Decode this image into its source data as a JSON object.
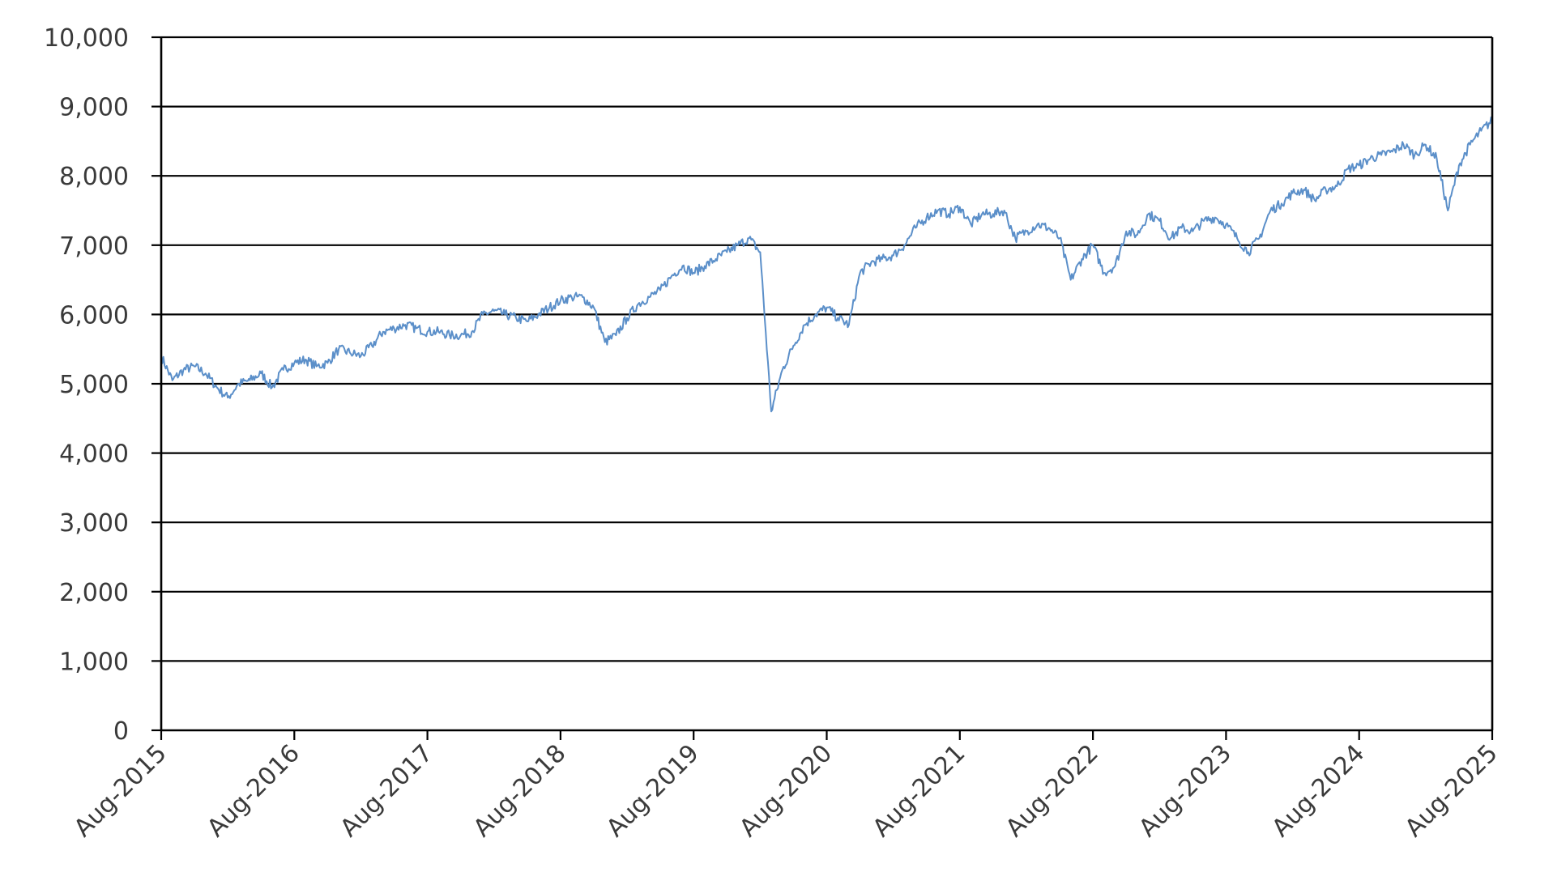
{
  "chart_data": {
    "type": "line",
    "title": "",
    "xlabel": "",
    "ylabel": "",
    "ylim": [
      0,
      10000
    ],
    "yticks": [
      0,
      1000,
      2000,
      3000,
      4000,
      5000,
      6000,
      7000,
      8000,
      9000,
      10000
    ],
    "ytick_labels": [
      "0",
      "1,000",
      "2,000",
      "3,000",
      "4,000",
      "5,000",
      "6,000",
      "7,000",
      "8,000",
      "9,000",
      "10,000"
    ],
    "xlim": [
      "2015-08",
      "2025-08"
    ],
    "xticks": [
      "2015-08",
      "2016-08",
      "2017-08",
      "2018-08",
      "2019-08",
      "2020-08",
      "2021-08",
      "2022-08",
      "2023-08",
      "2024-08",
      "2025-08"
    ],
    "xtick_labels": [
      "Aug-2015",
      "Aug-2016",
      "Aug-2017",
      "Aug-2018",
      "Aug-2019",
      "Aug-2020",
      "Aug-2021",
      "Aug-2022",
      "Aug-2023",
      "Aug-2024",
      "Aug-2025"
    ],
    "grid": true,
    "legend": "none",
    "series": [
      {
        "color": "#5b8fc9",
        "points": [
          [
            "2015-08",
            5400
          ],
          [
            "2015-09",
            5050
          ],
          [
            "2015-10",
            5200
          ],
          [
            "2015-11",
            5250
          ],
          [
            "2015-12",
            5150
          ],
          [
            "2016-01",
            4950
          ],
          [
            "2016-02",
            4800
          ],
          [
            "2016-03",
            5000
          ],
          [
            "2016-04",
            5050
          ],
          [
            "2016-05",
            5150
          ],
          [
            "2016-06",
            4950
          ],
          [
            "2016-07",
            5200
          ],
          [
            "2016-08",
            5300
          ],
          [
            "2016-09",
            5350
          ],
          [
            "2016-10",
            5250
          ],
          [
            "2016-11",
            5300
          ],
          [
            "2016-12",
            5500
          ],
          [
            "2017-01",
            5450
          ],
          [
            "2017-02",
            5400
          ],
          [
            "2017-03",
            5550
          ],
          [
            "2017-04",
            5750
          ],
          [
            "2017-05",
            5800
          ],
          [
            "2017-06",
            5850
          ],
          [
            "2017-07",
            5800
          ],
          [
            "2017-08",
            5750
          ],
          [
            "2017-09",
            5750
          ],
          [
            "2017-10",
            5700
          ],
          [
            "2017-11",
            5700
          ],
          [
            "2017-12",
            5750
          ],
          [
            "2018-01",
            6000
          ],
          [
            "2018-02",
            6050
          ],
          [
            "2018-03",
            6000
          ],
          [
            "2018-04",
            5950
          ],
          [
            "2018-05",
            5900
          ],
          [
            "2018-06",
            6000
          ],
          [
            "2018-07",
            6100
          ],
          [
            "2018-08",
            6200
          ],
          [
            "2018-09",
            6250
          ],
          [
            "2018-10",
            6250
          ],
          [
            "2018-11",
            6100
          ],
          [
            "2018-12",
            5600
          ],
          [
            "2019-01",
            5700
          ],
          [
            "2019-02",
            5950
          ],
          [
            "2019-03",
            6150
          ],
          [
            "2019-04",
            6250
          ],
          [
            "2019-05",
            6350
          ],
          [
            "2019-06",
            6550
          ],
          [
            "2019-07",
            6700
          ],
          [
            "2019-08",
            6600
          ],
          [
            "2019-09",
            6700
          ],
          [
            "2019-10",
            6800
          ],
          [
            "2019-11",
            6900
          ],
          [
            "2019-12",
            7000
          ],
          [
            "2020-01",
            7100
          ],
          [
            "2020-02",
            6900
          ],
          [
            "2020-03",
            4600
          ],
          [
            "2020-04",
            5200
          ],
          [
            "2020-05",
            5550
          ],
          [
            "2020-06",
            5850
          ],
          [
            "2020-07",
            6000
          ],
          [
            "2020-08",
            6100
          ],
          [
            "2020-09",
            5950
          ],
          [
            "2020-10",
            5850
          ],
          [
            "2020-11",
            6600
          ],
          [
            "2020-12",
            6750
          ],
          [
            "2021-01",
            6800
          ],
          [
            "2021-02",
            6850
          ],
          [
            "2021-03",
            7000
          ],
          [
            "2021-04",
            7250
          ],
          [
            "2021-05",
            7400
          ],
          [
            "2021-06",
            7500
          ],
          [
            "2021-07",
            7450
          ],
          [
            "2021-08",
            7550
          ],
          [
            "2021-09",
            7300
          ],
          [
            "2021-10",
            7450
          ],
          [
            "2021-11",
            7450
          ],
          [
            "2021-12",
            7500
          ],
          [
            "2022-01",
            7100
          ],
          [
            "2022-02",
            7200
          ],
          [
            "2022-03",
            7300
          ],
          [
            "2022-04",
            7250
          ],
          [
            "2022-05",
            7100
          ],
          [
            "2022-06",
            6500
          ],
          [
            "2022-07",
            6800
          ],
          [
            "2022-08",
            7000
          ],
          [
            "2022-09",
            6600
          ],
          [
            "2022-10",
            6700
          ],
          [
            "2022-11",
            7200
          ],
          [
            "2022-12",
            7150
          ],
          [
            "2023-01",
            7450
          ],
          [
            "2023-02",
            7350
          ],
          [
            "2023-03",
            7100
          ],
          [
            "2023-04",
            7250
          ],
          [
            "2023-05",
            7200
          ],
          [
            "2023-06",
            7350
          ],
          [
            "2023-07",
            7400
          ],
          [
            "2023-08",
            7300
          ],
          [
            "2023-09",
            7100
          ],
          [
            "2023-10",
            6900
          ],
          [
            "2023-11",
            7100
          ],
          [
            "2023-12",
            7500
          ],
          [
            "2024-01",
            7600
          ],
          [
            "2024-02",
            7750
          ],
          [
            "2024-03",
            7800
          ],
          [
            "2024-04",
            7650
          ],
          [
            "2024-05",
            7800
          ],
          [
            "2024-06",
            7850
          ],
          [
            "2024-07",
            8100
          ],
          [
            "2024-08",
            8150
          ],
          [
            "2024-09",
            8250
          ],
          [
            "2024-10",
            8300
          ],
          [
            "2024-11",
            8350
          ],
          [
            "2024-12",
            8450
          ],
          [
            "2025-01",
            8300
          ],
          [
            "2025-02",
            8450
          ],
          [
            "2025-03",
            8250
          ],
          [
            "2025-04",
            7500
          ],
          [
            "2025-05",
            8150
          ],
          [
            "2025-06",
            8450
          ],
          [
            "2025-07",
            8650
          ],
          [
            "2025-08",
            8800
          ]
        ]
      }
    ]
  }
}
